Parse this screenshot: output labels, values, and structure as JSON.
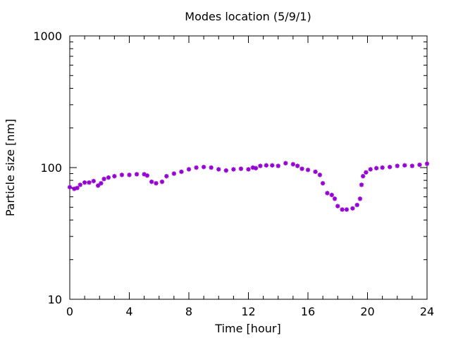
{
  "chart_data": {
    "type": "scatter",
    "title": "Modes location (5/9/1)",
    "xlabel": "Time [hour]",
    "ylabel": "Particle size [nm]",
    "xlim": [
      0,
      24
    ],
    "ylim": [
      10,
      1000
    ],
    "yscale": "log",
    "x_ticks": [
      0,
      4,
      8,
      12,
      16,
      20,
      24
    ],
    "y_ticks": [
      10,
      100,
      1000
    ],
    "grid": false,
    "marker": "asterisk",
    "color": "#9400d3",
    "series": [
      {
        "x": [
          0.0,
          0.3,
          0.5,
          0.7,
          1.0,
          1.3,
          1.6,
          1.9,
          2.1,
          2.3,
          2.6,
          3.0,
          3.5,
          4.0,
          4.5,
          5.0,
          5.2,
          5.5,
          5.8,
          6.2,
          6.5,
          7.0,
          7.5,
          8.0,
          8.5,
          9.0,
          9.5,
          10.0,
          10.5,
          11.0,
          11.5,
          12.0,
          12.3,
          12.5,
          12.8,
          13.2,
          13.6,
          14.0,
          14.5,
          15.0,
          15.3,
          15.6,
          16.0,
          16.5,
          16.8,
          17.0,
          17.3,
          17.6,
          17.8,
          18.0,
          18.3,
          18.6,
          19.0,
          19.3,
          19.5,
          19.6,
          19.7,
          19.9,
          20.2,
          20.6,
          21.0,
          21.5,
          22.0,
          22.5,
          23.0,
          23.5,
          24.0
        ],
        "y": [
          71,
          69,
          70,
          74,
          77,
          77,
          79,
          73,
          76,
          82,
          84,
          86,
          88,
          88,
          89,
          89,
          87,
          78,
          76,
          78,
          86,
          90,
          93,
          97,
          100,
          101,
          100,
          97,
          95,
          97,
          98,
          97,
          100,
          99,
          103,
          104,
          104,
          103,
          108,
          106,
          103,
          98,
          96,
          93,
          88,
          76,
          64,
          62,
          58,
          51,
          48,
          48,
          49,
          52,
          58,
          74,
          86,
          92,
          97,
          99,
          100,
          101,
          103,
          104,
          103,
          105,
          107
        ]
      }
    ]
  }
}
